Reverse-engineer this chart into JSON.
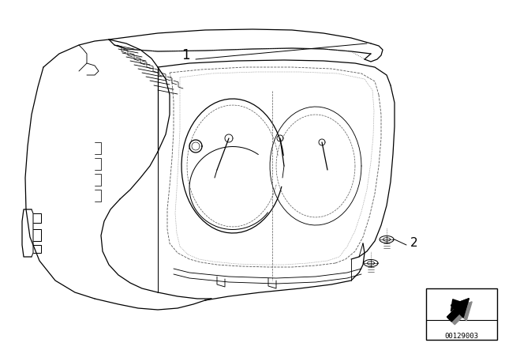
{
  "background_color": "#ffffff",
  "part_number": "00129003",
  "label_1": "1",
  "label_2": "2",
  "line_color": "#000000",
  "line_width": 0.9,
  "figsize": [
    6.4,
    4.48
  ],
  "dpi": 100
}
